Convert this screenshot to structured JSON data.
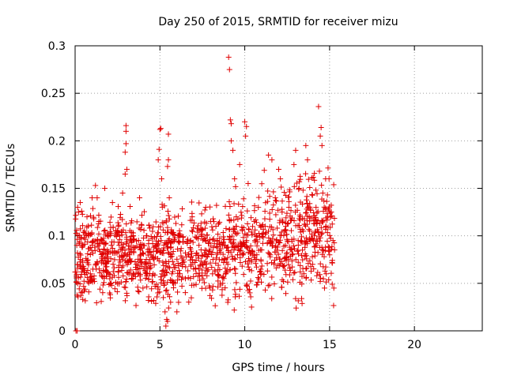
{
  "chart_data": {
    "type": "scatter",
    "title": "Day 250 of 2015, SRMTID for receiver mizu",
    "xlabel": "GPS time / hours",
    "ylabel": "SRMTID / TECUs",
    "xlim": [
      0,
      24
    ],
    "ylim": [
      0,
      0.3
    ],
    "xticks": [
      0,
      5,
      10,
      15,
      20
    ],
    "xtick_labels": [
      "0",
      "5",
      "10",
      "15",
      "20"
    ],
    "yticks": [
      0,
      0.05,
      0.1,
      0.15,
      0.2,
      0.25,
      0.3
    ],
    "ytick_labels": [
      "0",
      "0.05",
      "0.1",
      "0.15",
      "0.2",
      "0.25",
      "0.3"
    ],
    "grid": true,
    "marker": "plus",
    "marker_color": "#e00000",
    "series": [
      {
        "name": "SRMTID",
        "x_range": [
          0.0,
          15.3
        ],
        "points": [
          [
            0.05,
            0.0
          ],
          [
            0.12,
            0.0
          ],
          [
            0.1,
            0.09
          ],
          [
            0.15,
            0.13
          ],
          [
            0.2,
            0.125
          ],
          [
            0.3,
            0.135
          ],
          [
            0.35,
            0.04
          ],
          [
            0.45,
            0.033
          ],
          [
            0.55,
            0.105
          ],
          [
            0.7,
            0.12
          ],
          [
            0.8,
            0.1
          ],
          [
            0.9,
            0.06
          ],
          [
            1.0,
            0.14
          ],
          [
            1.1,
            0.118
          ],
          [
            1.2,
            0.153
          ],
          [
            1.3,
            0.14
          ],
          [
            1.4,
            0.115
          ],
          [
            1.6,
            0.095
          ],
          [
            1.75,
            0.15
          ],
          [
            1.9,
            0.085
          ],
          [
            2.0,
            0.06
          ],
          [
            2.2,
            0.135
          ],
          [
            2.4,
            0.105
          ],
          [
            2.6,
            0.09
          ],
          [
            2.8,
            0.145
          ],
          [
            2.95,
            0.165
          ],
          [
            2.95,
            0.188
          ],
          [
            3.0,
            0.197
          ],
          [
            3.0,
            0.21
          ],
          [
            3.0,
            0.216
          ],
          [
            3.05,
            0.17
          ],
          [
            3.2,
            0.08
          ],
          [
            3.4,
            0.055
          ],
          [
            3.6,
            0.07
          ],
          [
            3.8,
            0.14
          ],
          [
            4.0,
            0.045
          ],
          [
            4.2,
            0.1
          ],
          [
            4.4,
            0.075
          ],
          [
            4.6,
            0.06
          ],
          [
            4.8,
            0.09
          ],
          [
            4.9,
            0.18
          ],
          [
            4.95,
            0.191
          ],
          [
            5.0,
            0.212
          ],
          [
            5.05,
            0.213
          ],
          [
            5.1,
            0.16
          ],
          [
            5.2,
            0.035
          ],
          [
            5.3,
            0.02
          ],
          [
            5.35,
            0.005
          ],
          [
            5.4,
            0.012
          ],
          [
            5.45,
            0.01
          ],
          [
            5.5,
            0.207
          ],
          [
            5.45,
            0.173
          ],
          [
            5.5,
            0.18
          ],
          [
            5.55,
            0.14
          ],
          [
            5.7,
            0.06
          ],
          [
            5.9,
            0.05
          ],
          [
            6.0,
            0.02
          ],
          [
            6.1,
            0.03
          ],
          [
            6.3,
            0.07
          ],
          [
            6.5,
            0.055
          ],
          [
            6.7,
            0.08
          ],
          [
            6.9,
            0.12
          ],
          [
            7.1,
            0.065
          ],
          [
            7.3,
            0.09
          ],
          [
            7.5,
            0.07
          ],
          [
            7.7,
            0.13
          ],
          [
            7.9,
            0.085
          ],
          [
            8.1,
            0.06
          ],
          [
            8.3,
            0.11
          ],
          [
            8.5,
            0.075
          ],
          [
            8.7,
            0.05
          ],
          [
            8.85,
            0.09
          ],
          [
            9.0,
            0.03
          ],
          [
            9.05,
            0.288
          ],
          [
            9.1,
            0.275
          ],
          [
            9.15,
            0.222
          ],
          [
            9.2,
            0.218
          ],
          [
            9.2,
            0.2
          ],
          [
            9.3,
            0.19
          ],
          [
            9.4,
            0.16
          ],
          [
            9.5,
            0.12
          ],
          [
            9.7,
            0.175
          ],
          [
            9.9,
            0.08
          ],
          [
            10.0,
            0.22
          ],
          [
            10.05,
            0.205
          ],
          [
            10.1,
            0.215
          ],
          [
            10.2,
            0.155
          ],
          [
            10.3,
            0.04
          ],
          [
            10.4,
            0.025
          ],
          [
            10.6,
            0.095
          ],
          [
            10.8,
            0.13
          ],
          [
            11.0,
            0.06
          ],
          [
            11.2,
            0.11
          ],
          [
            11.4,
            0.185
          ],
          [
            11.6,
            0.18
          ],
          [
            11.8,
            0.14
          ],
          [
            12.0,
            0.17
          ],
          [
            12.1,
            0.16
          ],
          [
            12.2,
            0.125
          ],
          [
            12.4,
            0.09
          ],
          [
            12.6,
            0.13
          ],
          [
            12.8,
            0.08
          ],
          [
            12.9,
            0.175
          ],
          [
            13.0,
            0.19
          ],
          [
            13.2,
            0.15
          ],
          [
            13.4,
            0.085
          ],
          [
            13.6,
            0.195
          ],
          [
            13.7,
            0.18
          ],
          [
            13.8,
            0.12
          ],
          [
            14.0,
            0.07
          ],
          [
            14.1,
            0.1
          ],
          [
            14.2,
            0.13
          ],
          [
            14.35,
            0.236
          ],
          [
            14.4,
            0.168
          ],
          [
            14.45,
            0.205
          ],
          [
            14.5,
            0.214
          ],
          [
            14.55,
            0.195
          ],
          [
            14.6,
            0.145
          ],
          [
            14.7,
            0.045
          ],
          [
            14.8,
            0.06
          ],
          [
            14.9,
            0.12
          ],
          [
            15.0,
            0.08
          ],
          [
            15.1,
            0.125
          ],
          [
            15.2,
            0.095
          ],
          [
            15.25,
            0.045
          ]
        ]
      }
    ]
  }
}
